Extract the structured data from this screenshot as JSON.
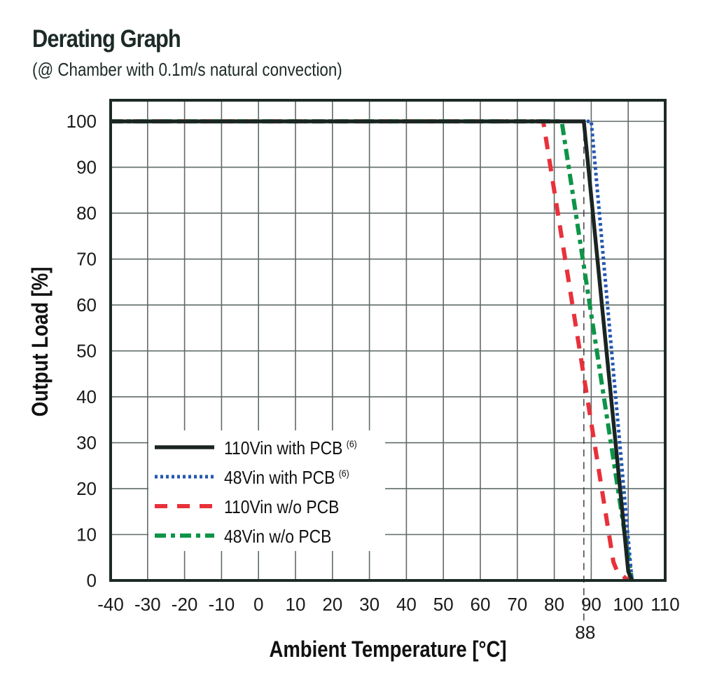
{
  "header": {
    "title": "Derating Graph",
    "subtitle": "(@ Chamber with 0.1m/s natural convection)"
  },
  "chart_data": {
    "type": "line",
    "title": "Derating Graph",
    "subtitle": "(@ Chamber with 0.1m/s natural convection)",
    "xlabel": "Ambient Temperature [°C]",
    "ylabel": "Output Load [%]",
    "xlim": [
      -40,
      110
    ],
    "ylim": [
      0,
      100
    ],
    "xticks": [
      -40,
      -30,
      -20,
      -10,
      0,
      10,
      20,
      30,
      40,
      50,
      60,
      70,
      80,
      90,
      100,
      110
    ],
    "yticks": [
      0,
      10,
      20,
      30,
      40,
      50,
      60,
      70,
      80,
      90,
      100
    ],
    "grid": true,
    "legend_position": "bottom-left",
    "annotations": [
      {
        "type": "vertical-dashed-line",
        "x": 88,
        "label": "88"
      }
    ],
    "series": [
      {
        "name": "110Vin with PCB",
        "note": "(6)",
        "color": "#1a2522",
        "style": "solid",
        "x": [
          -40,
          88,
          100,
          101
        ],
        "y": [
          100,
          100,
          2,
          0
        ]
      },
      {
        "name": "48Vin with PCB",
        "note": "(6)",
        "color": "#2457b0",
        "style": "dotted",
        "x": [
          -40,
          90,
          101
        ],
        "y": [
          100,
          100,
          0
        ]
      },
      {
        "name": "110Vin w/o PCB",
        "note": "",
        "color": "#e8313a",
        "style": "dashed",
        "x": [
          -40,
          77,
          96,
          97,
          100
        ],
        "y": [
          100,
          100,
          4,
          2,
          0
        ]
      },
      {
        "name": "48Vin w/o PCB",
        "note": "",
        "color": "#0d9448",
        "style": "dash-dot",
        "x": [
          -40,
          82,
          101
        ],
        "y": [
          100,
          100,
          0
        ]
      }
    ]
  }
}
